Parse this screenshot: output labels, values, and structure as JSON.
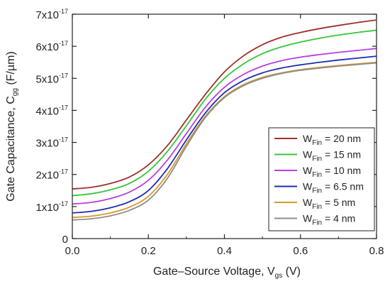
{
  "chart_data": {
    "type": "line",
    "xlabel": {
      "main": "Gate–Source Voltage, V",
      "sub": "gs",
      "tail": " (V)"
    },
    "ylabel": {
      "main": "Gate Capacitance, C",
      "sub": "gg",
      "tail": " (F/µm)"
    },
    "xlim": [
      0.0,
      0.8
    ],
    "ylim": [
      0,
      7e-17
    ],
    "x_ticks": [
      {
        "value": 0.0,
        "label": "0.0"
      },
      {
        "value": 0.2,
        "label": "0.2"
      },
      {
        "value": 0.4,
        "label": "0.4"
      },
      {
        "value": 0.6,
        "label": "0.6"
      },
      {
        "value": 0.8,
        "label": "0.8"
      }
    ],
    "y_ticks": [
      {
        "value": 0,
        "mant": "0",
        "exp": ""
      },
      {
        "value": 1e-17,
        "mant": "1x10",
        "exp": "-17"
      },
      {
        "value": 2e-17,
        "mant": "2x10",
        "exp": "-17"
      },
      {
        "value": 3e-17,
        "mant": "3x10",
        "exp": "-17"
      },
      {
        "value": 4e-17,
        "mant": "4x10",
        "exp": "-17"
      },
      {
        "value": 5e-17,
        "mant": "5x10",
        "exp": "-17"
      },
      {
        "value": 6e-17,
        "mant": "6x10",
        "exp": "-17"
      },
      {
        "value": 7e-17,
        "mant": "7x10",
        "exp": "-17"
      }
    ],
    "grid": false,
    "legend_position": "bottom-right",
    "x": [
      0.0,
      0.05,
      0.1,
      0.15,
      0.2,
      0.25,
      0.3,
      0.35,
      0.4,
      0.45,
      0.5,
      0.55,
      0.6,
      0.65,
      0.7,
      0.75,
      0.8
    ],
    "series": [
      {
        "name": "W",
        "sub": "Fin",
        "suffix": " = 20 nm",
        "color": "#a0302a",
        "values": [
          1.55e-17,
          1.6e-17,
          1.72e-17,
          1.92e-17,
          2.3e-17,
          2.9e-17,
          3.7e-17,
          4.5e-17,
          5.2e-17,
          5.7e-17,
          6.05e-17,
          6.28e-17,
          6.43e-17,
          6.55e-17,
          6.65e-17,
          6.74e-17,
          6.82e-17
        ]
      },
      {
        "name": "W",
        "sub": "Fin",
        "suffix": " = 15 nm",
        "color": "#36c53a",
        "values": [
          1.34e-17,
          1.4e-17,
          1.52e-17,
          1.72e-17,
          2.1e-17,
          2.72e-17,
          3.52e-17,
          4.35e-17,
          5e-17,
          5.45e-17,
          5.77e-17,
          5.98e-17,
          6.13e-17,
          6.25e-17,
          6.35e-17,
          6.43e-17,
          6.5e-17
        ]
      },
      {
        "name": "W",
        "sub": "Fin",
        "suffix": " = 10 nm",
        "color": "#b93ee0",
        "values": [
          1.08e-17,
          1.13e-17,
          1.25e-17,
          1.45e-17,
          1.82e-17,
          2.45e-17,
          3.28e-17,
          4.1e-17,
          4.72e-17,
          5.12e-17,
          5.38e-17,
          5.55e-17,
          5.66e-17,
          5.74e-17,
          5.81e-17,
          5.87e-17,
          5.93e-17
        ]
      },
      {
        "name": "W",
        "sub": "Fin",
        "suffix": " = 6.5 nm",
        "color": "#1f2bb0",
        "values": [
          8e-18,
          8.5e-18,
          9.6e-18,
          1.15e-17,
          1.5e-17,
          2.18e-17,
          3.08e-17,
          3.92e-17,
          4.55e-17,
          4.93e-17,
          5.17e-17,
          5.32e-17,
          5.42e-17,
          5.5e-17,
          5.57e-17,
          5.63e-17,
          5.69e-17
        ]
      },
      {
        "name": "W",
        "sub": "Fin",
        "suffix": " = 5 nm",
        "color": "#d59a26",
        "values": [
          6.6e-18,
          7e-18,
          8e-18,
          9.8e-18,
          1.32e-17,
          2e-17,
          2.96e-17,
          3.82e-17,
          4.43e-17,
          4.8e-17,
          5.03e-17,
          5.17e-17,
          5.27e-17,
          5.34e-17,
          5.4e-17,
          5.45e-17,
          5.5e-17
        ]
      },
      {
        "name": "W",
        "sub": "Fin",
        "suffix": " = 4 nm",
        "color": "#8c8c8c",
        "values": [
          5.8e-18,
          6.2e-18,
          7.1e-18,
          8.8e-18,
          1.2e-17,
          1.88e-17,
          2.88e-17,
          3.78e-17,
          4.4e-17,
          4.77e-17,
          5e-17,
          5.15e-17,
          5.25e-17,
          5.32e-17,
          5.38e-17,
          5.43e-17,
          5.48e-17
        ]
      }
    ]
  }
}
